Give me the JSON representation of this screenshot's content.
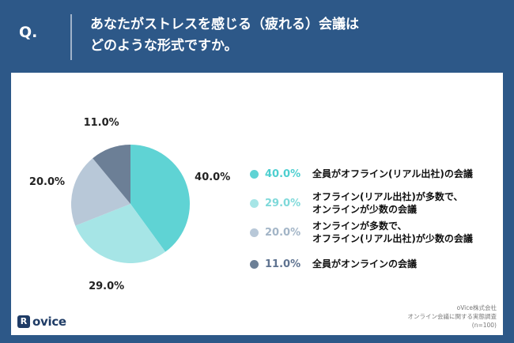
{
  "header": {
    "q_label": "Q.",
    "question_line1": "あなたがストレスを感じる（疲れる）会議は",
    "question_line2": "どのような形式ですか。"
  },
  "chart_data": {
    "type": "pie",
    "slices": [
      {
        "label": "全員がオフライン(リアル出社)の会議",
        "value": 40.0,
        "display": "40.0%",
        "color": "#5fd3d4"
      },
      {
        "label": "オフライン(リアル出社)が多数で、オンラインが少数の会議",
        "value": 29.0,
        "display": "29.0%",
        "color": "#a6e5e6"
      },
      {
        "label": "オンラインが多数で、オフライン(リアル出社)が少数の会議",
        "value": 20.0,
        "display": "20.0%",
        "color": "#b8c8d8"
      },
      {
        "label": "全員がオンラインの会議",
        "value": 11.0,
        "display": "11.0%",
        "color": "#6c7f96"
      }
    ]
  },
  "legend": [
    {
      "pct": "40.0%",
      "lines": [
        "全員がオフライン(リアル出社)の会議"
      ],
      "color": "#5fd3d4",
      "text_color": "#4ecfd0"
    },
    {
      "pct": "29.0%",
      "lines": [
        "オフライン(リアル出社)が多数で、",
        "オンラインが少数の会議"
      ],
      "color": "#a6e5e6",
      "text_color": "#7fd9da"
    },
    {
      "pct": "20.0%",
      "lines": [
        "オンラインが多数で、",
        "オフライン(リアル出社)が少数の会議"
      ],
      "color": "#b8c8d8",
      "text_color": "#a3b5c7"
    },
    {
      "pct": "11.0%",
      "lines": [
        "全員がオンラインの会議"
      ],
      "color": "#6c7f96",
      "text_color": "#5f7390"
    }
  ],
  "branding": {
    "logo_mark": "R",
    "logo_text": "ovice"
  },
  "source": {
    "line1": "oVice株式会社",
    "line2": "オンライン会議に関する実態調査",
    "line3": "(n=100)"
  }
}
